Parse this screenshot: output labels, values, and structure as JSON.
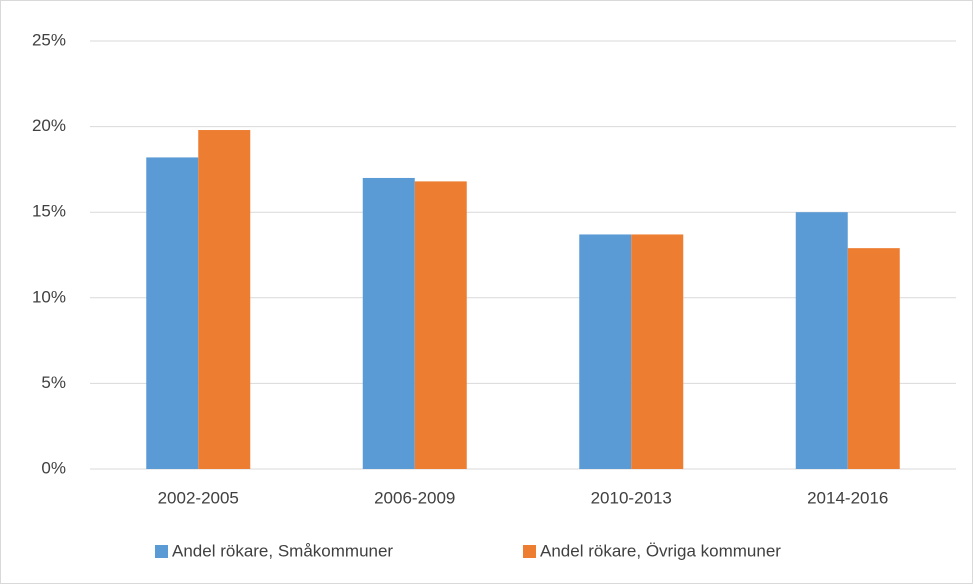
{
  "chart_data": {
    "type": "bar",
    "categories": [
      "2002-2005",
      "2006-2009",
      "2010-2013",
      "2014-2016"
    ],
    "series": [
      {
        "name": "Andel rökare, Småkommuner",
        "color": "#5b9bd5",
        "values": [
          18.2,
          17.0,
          13.7,
          15.0
        ]
      },
      {
        "name": "Andel rökare, Övriga kommuner",
        "color": "#ed7d31",
        "values": [
          19.8,
          16.8,
          13.7,
          12.9
        ]
      }
    ],
    "ylim": [
      0,
      25
    ],
    "yticks": [
      {
        "value": 0,
        "label": "0%"
      },
      {
        "value": 5,
        "label": "5%"
      },
      {
        "value": 10,
        "label": "10%"
      },
      {
        "value": 15,
        "label": "15%"
      },
      {
        "value": 20,
        "label": "20%"
      },
      {
        "value": 25,
        "label": "25%"
      }
    ],
    "grid": true,
    "legend": "bottom"
  }
}
